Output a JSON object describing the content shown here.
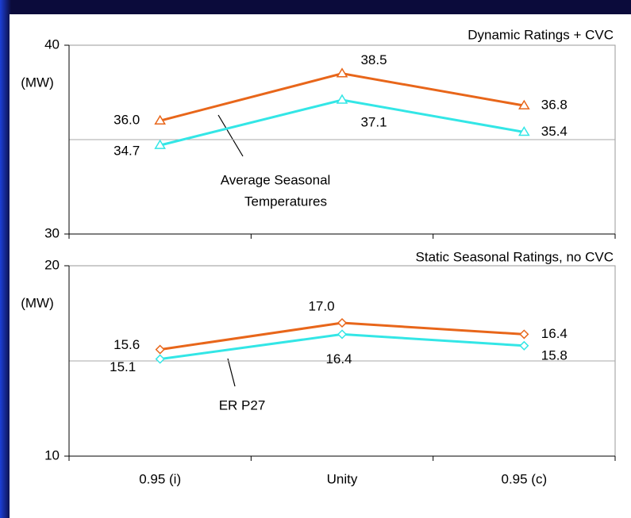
{
  "chart_data": [
    {
      "type": "line",
      "title": "Dynamic Ratings + CVC",
      "y_label": "(MW)",
      "annotation": [
        "Average Seasonal",
        "Temperatures"
      ],
      "ylim": [
        30,
        40
      ],
      "yticks": [
        30,
        40
      ],
      "grid_values": [
        35
      ],
      "marker": "triangle",
      "series": [
        {
          "name": "orange",
          "color": "#e8661a",
          "values": [
            36.0,
            38.5,
            36.8
          ],
          "value_labels": [
            "36.0",
            "38.5",
            "36.8"
          ]
        },
        {
          "name": "cyan",
          "color": "#33e6e6",
          "values": [
            34.7,
            37.1,
            35.4
          ],
          "value_labels": [
            "34.7",
            "37.1",
            "35.4"
          ]
        }
      ]
    },
    {
      "type": "line",
      "title": "Static Seasonal Ratings, no CVC",
      "y_label": "(MW)",
      "annotation": [
        "ER P27"
      ],
      "categories": [
        "0.95 (i)",
        "Unity",
        "0.95 (c)"
      ],
      "ylim": [
        10,
        20
      ],
      "yticks": [
        10,
        20
      ],
      "grid_values": [
        15
      ],
      "marker": "diamond",
      "series": [
        {
          "name": "orange",
          "color": "#e8661a",
          "values": [
            15.6,
            17.0,
            16.4
          ],
          "value_labels": [
            "15.6",
            "17.0",
            "16.4"
          ]
        },
        {
          "name": "cyan",
          "color": "#33e6e6",
          "values": [
            15.1,
            16.4,
            15.8
          ],
          "value_labels": [
            "15.1",
            "16.4",
            "15.8"
          ]
        }
      ]
    }
  ]
}
